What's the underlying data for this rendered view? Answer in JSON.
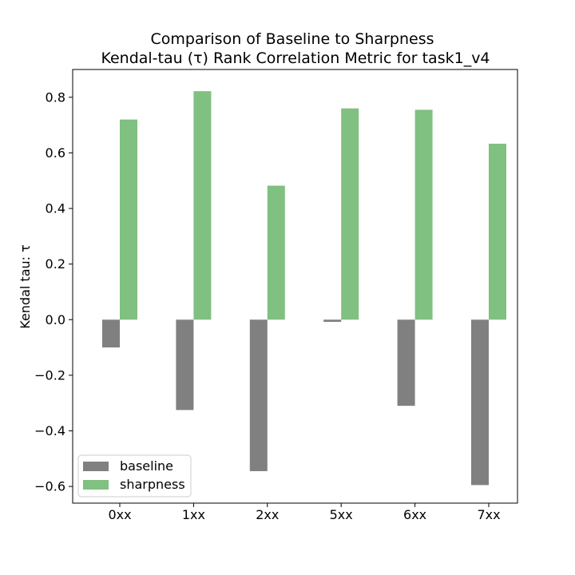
{
  "chart_data": {
    "type": "bar",
    "title_line1": "Comparison of Baseline to Sharpness",
    "title_line2": "Kendal-tau (τ) Rank Correlation Metric for task1_v4",
    "xlabel": "",
    "ylabel": "Kendal tau: τ",
    "categories": [
      "0xx",
      "1xx",
      "2xx",
      "5xx",
      "6xx",
      "7xx"
    ],
    "series": [
      {
        "name": "baseline",
        "color": "#808080",
        "values": [
          -0.1,
          -0.325,
          -0.545,
          -0.008,
          -0.31,
          -0.595
        ]
      },
      {
        "name": "sharpness",
        "color": "#80c080",
        "values": [
          0.72,
          0.822,
          0.482,
          0.76,
          0.755,
          0.633
        ]
      }
    ],
    "ylim": [
      -0.66,
      0.9
    ],
    "yticks": [
      -0.6,
      -0.4,
      -0.2,
      0.0,
      0.2,
      0.4,
      0.6,
      0.8
    ],
    "ytick_labels": [
      "−0.6",
      "−0.4",
      "−0.2",
      "0.0",
      "0.2",
      "0.4",
      "0.6",
      "0.8"
    ],
    "legend_position": "lower-left",
    "grid": false
  }
}
